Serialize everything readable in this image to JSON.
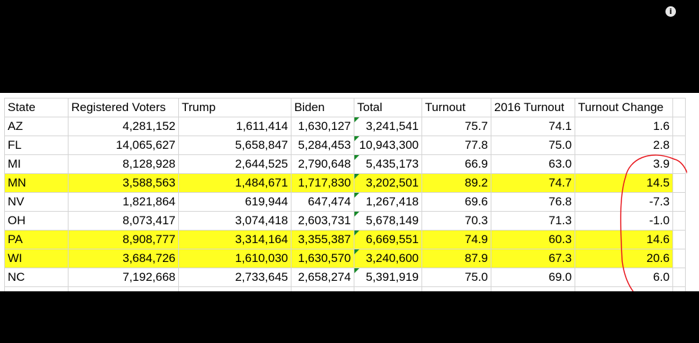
{
  "info_icon": "info-icon",
  "highlight_color": "#ffff22",
  "annotation_color": "#e8151c",
  "table": {
    "headers": [
      "State",
      "Registered Voters",
      "Trump",
      "Biden",
      "Total",
      "Turnout",
      "2016 Turnout",
      "Turnout Change"
    ],
    "rows": [
      {
        "cells": [
          "AZ",
          "4,281,152",
          "1,611,414",
          "1,630,127",
          "3,241,541",
          "75.7",
          "74.1",
          "1.6"
        ],
        "highlight": false
      },
      {
        "cells": [
          "FL",
          "14,065,627",
          "5,658,847",
          "5,284,453",
          "10,943,300",
          "77.8",
          "75.0",
          "2.8"
        ],
        "highlight": false
      },
      {
        "cells": [
          "MI",
          "8,128,928",
          "2,644,525",
          "2,790,648",
          "5,435,173",
          "66.9",
          "63.0",
          "3.9"
        ],
        "highlight": false
      },
      {
        "cells": [
          "MN",
          "3,588,563",
          "1,484,671",
          "1,717,830",
          "3,202,501",
          "89.2",
          "74.7",
          "14.5"
        ],
        "highlight": true
      },
      {
        "cells": [
          "NV",
          "1,821,864",
          "619,944",
          "647,474",
          "1,267,418",
          "69.6",
          "76.8",
          "-7.3"
        ],
        "highlight": false
      },
      {
        "cells": [
          "OH",
          "8,073,417",
          "3,074,418",
          "2,603,731",
          "5,678,149",
          "70.3",
          "71.3",
          "-1.0"
        ],
        "highlight": false
      },
      {
        "cells": [
          "PA",
          "8,908,777",
          "3,314,164",
          "3,355,387",
          "6,669,551",
          "74.9",
          "60.3",
          "14.6"
        ],
        "highlight": true
      },
      {
        "cells": [
          "WI",
          "3,684,726",
          "1,610,030",
          "1,630,570",
          "3,240,600",
          "87.9",
          "67.3",
          "20.6"
        ],
        "highlight": true
      },
      {
        "cells": [
          "NC",
          "7,192,668",
          "2,733,645",
          "2,658,274",
          "5,391,919",
          "75.0",
          "69.0",
          "6.0"
        ],
        "highlight": false
      }
    ]
  }
}
